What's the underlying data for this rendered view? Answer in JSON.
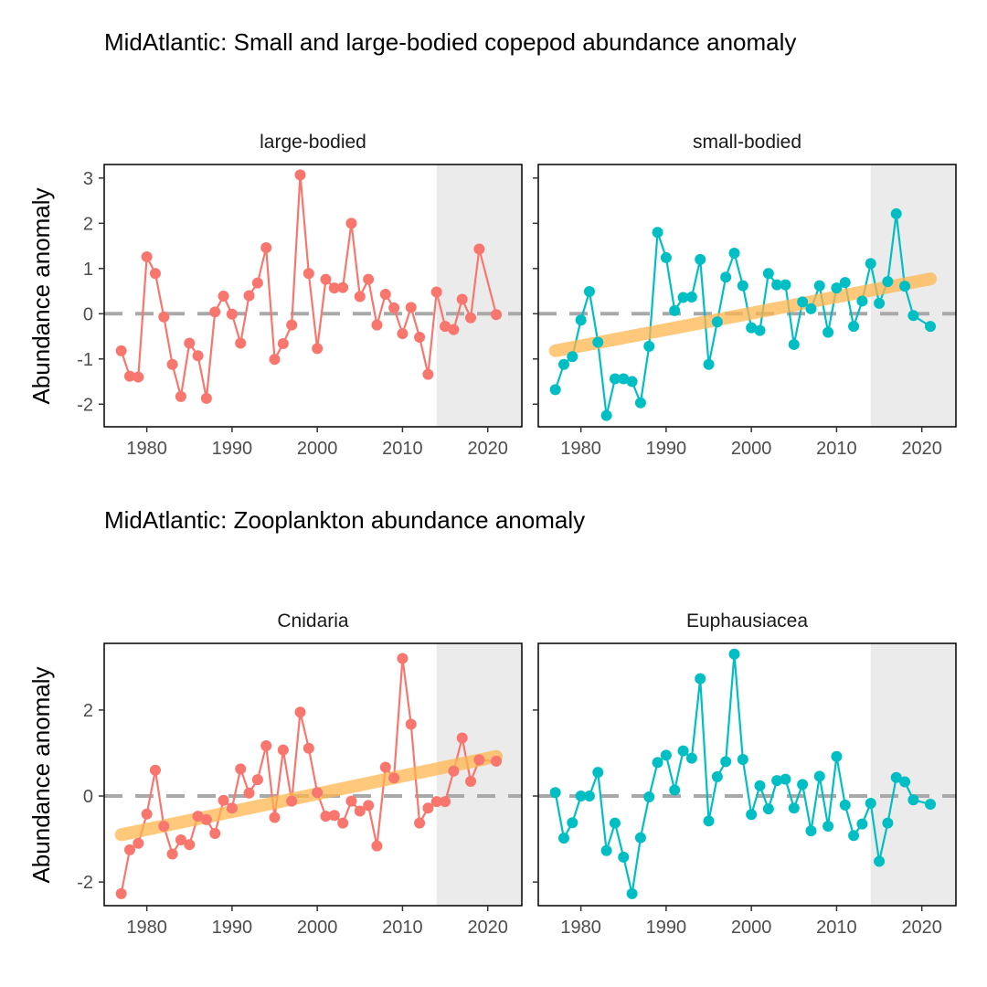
{
  "chart_data": [
    {
      "type": "line",
      "title": "MidAtlantic: Small and large-bodied copepod abundance anomaly",
      "xlabel": "",
      "ylabel": "Abundance anomaly",
      "xlim": [
        1975,
        2024
      ],
      "ylim": [
        -2.5,
        3.3
      ],
      "x_ticks": [
        1980,
        1990,
        2000,
        2010,
        2020
      ],
      "y_ticks": [
        -2,
        -1,
        0,
        1,
        2,
        3
      ],
      "shaded_region": [
        2014,
        2024
      ],
      "reference_line": 0,
      "panels": [
        {
          "label": "large-bodied",
          "color": "#F8766D",
          "x": [
            1977,
            1978,
            1979,
            1980,
            1981,
            1982,
            1983,
            1984,
            1985,
            1986,
            1987,
            1988,
            1989,
            1990,
            1991,
            1992,
            1993,
            1994,
            1995,
            1996,
            1997,
            1998,
            1999,
            2000,
            2001,
            2002,
            2003,
            2004,
            2005,
            2006,
            2007,
            2008,
            2009,
            2010,
            2011,
            2012,
            2013,
            2014,
            2015,
            2016,
            2017,
            2018,
            2019,
            2021
          ],
          "y": [
            -0.82,
            -1.38,
            -1.4,
            1.26,
            0.89,
            -0.07,
            -1.12,
            -1.83,
            -0.65,
            -0.93,
            -1.87,
            0.04,
            0.39,
            -0.01,
            -0.65,
            0.4,
            0.68,
            1.46,
            -1.01,
            -0.66,
            -0.25,
            3.07,
            0.89,
            -0.77,
            0.76,
            0.57,
            0.58,
            2.0,
            0.38,
            0.76,
            -0.25,
            0.43,
            0.13,
            -0.44,
            0.14,
            -0.52,
            -1.34,
            0.48,
            -0.28,
            -0.35,
            0.32,
            -0.09,
            1.43,
            -0.02
          ],
          "trend": null
        },
        {
          "label": "small-bodied",
          "color": "#00BFC4",
          "x": [
            1977,
            1978,
            1979,
            1980,
            1981,
            1982,
            1983,
            1984,
            1985,
            1986,
            1987,
            1988,
            1989,
            1990,
            1991,
            1992,
            1993,
            1994,
            1995,
            1996,
            1997,
            1998,
            1999,
            2000,
            2001,
            2002,
            2003,
            2004,
            2005,
            2006,
            2007,
            2008,
            2009,
            2010,
            2011,
            2012,
            2013,
            2014,
            2015,
            2016,
            2017,
            2018,
            2019,
            2021
          ],
          "y": [
            -1.68,
            -1.12,
            -0.95,
            -0.14,
            0.49,
            -0.63,
            -2.25,
            -1.44,
            -1.44,
            -1.5,
            -1.97,
            -0.72,
            1.8,
            1.24,
            0.07,
            0.36,
            0.37,
            1.2,
            -1.12,
            -0.18,
            0.81,
            1.34,
            0.62,
            -0.31,
            -0.37,
            0.89,
            0.64,
            0.64,
            -0.68,
            0.26,
            0.11,
            0.62,
            -0.41,
            0.57,
            0.69,
            -0.28,
            0.28,
            1.11,
            0.23,
            0.71,
            2.21,
            0.61,
            -0.04,
            -0.28
          ],
          "trend": {
            "x": [
              1977,
              2021
            ],
            "y": [
              -0.82,
              0.77
            ]
          }
        }
      ]
    },
    {
      "type": "line",
      "title": "MidAtlantic: Zooplankton abundance anomaly",
      "xlabel": "",
      "ylabel": "Abundance anomaly",
      "xlim": [
        1975,
        2024
      ],
      "ylim": [
        -2.55,
        3.55
      ],
      "x_ticks": [
        1980,
        1990,
        2000,
        2010,
        2020
      ],
      "y_ticks": [
        -2,
        0,
        2
      ],
      "shaded_region": [
        2014,
        2024
      ],
      "reference_line": 0,
      "panels": [
        {
          "label": "Cnidaria",
          "color": "#F8766D",
          "x": [
            1977,
            1978,
            1979,
            1980,
            1981,
            1982,
            1983,
            1984,
            1985,
            1986,
            1987,
            1988,
            1989,
            1990,
            1991,
            1992,
            1993,
            1994,
            1995,
            1996,
            1997,
            1998,
            1999,
            2000,
            2001,
            2002,
            2003,
            2004,
            2005,
            2006,
            2007,
            2008,
            2009,
            2010,
            2011,
            2012,
            2013,
            2014,
            2015,
            2016,
            2017,
            2018,
            2019,
            2021
          ],
          "y": [
            -2.27,
            -1.25,
            -1.1,
            -0.42,
            0.6,
            -0.7,
            -1.35,
            -1.02,
            -1.13,
            -0.47,
            -0.55,
            -0.87,
            -0.1,
            -0.28,
            0.63,
            0.07,
            0.38,
            1.17,
            -0.5,
            1.07,
            -0.12,
            1.95,
            1.11,
            0.08,
            -0.47,
            -0.45,
            -0.63,
            -0.12,
            -0.35,
            -0.22,
            -1.16,
            0.67,
            0.42,
            3.2,
            1.67,
            -0.63,
            -0.28,
            -0.13,
            -0.13,
            0.58,
            1.35,
            0.34,
            0.84,
            0.81
          ],
          "trend": {
            "x": [
              1977,
              2021
            ],
            "y": [
              -0.9,
              0.92
            ]
          }
        },
        {
          "label": "Euphausiacea",
          "color": "#00BFC4",
          "x": [
            1977,
            1978,
            1979,
            1980,
            1981,
            1982,
            1983,
            1984,
            1985,
            1986,
            1987,
            1988,
            1989,
            1990,
            1991,
            1992,
            1993,
            1994,
            1995,
            1996,
            1997,
            1998,
            1999,
            2000,
            2001,
            2002,
            2003,
            2004,
            2005,
            2006,
            2007,
            2008,
            2009,
            2010,
            2011,
            2012,
            2013,
            2014,
            2015,
            2016,
            2017,
            2018,
            2019,
            2021
          ],
          "y": [
            0.08,
            -0.98,
            -0.62,
            0.0,
            0.0,
            0.55,
            -1.27,
            -0.63,
            -1.42,
            -2.27,
            -0.97,
            -0.02,
            0.78,
            0.95,
            0.14,
            1.05,
            0.88,
            2.73,
            -0.58,
            0.45,
            0.8,
            3.3,
            0.85,
            -0.43,
            0.24,
            -0.3,
            0.36,
            0.39,
            -0.28,
            0.27,
            -0.81,
            0.46,
            -0.7,
            0.92,
            -0.21,
            -0.92,
            -0.65,
            -0.17,
            -1.52,
            -0.63,
            0.43,
            0.33,
            -0.09,
            -0.19
          ],
          "trend": null
        }
      ]
    }
  ],
  "styles": {
    "panel_background": "#FFFFFF",
    "shade_color": "#EBEBEB",
    "reference_line_color": "#A9A9A9",
    "trend_color": "#FFB64D",
    "axis_text_color": "#4D4D4D",
    "border_color": "#000000"
  }
}
